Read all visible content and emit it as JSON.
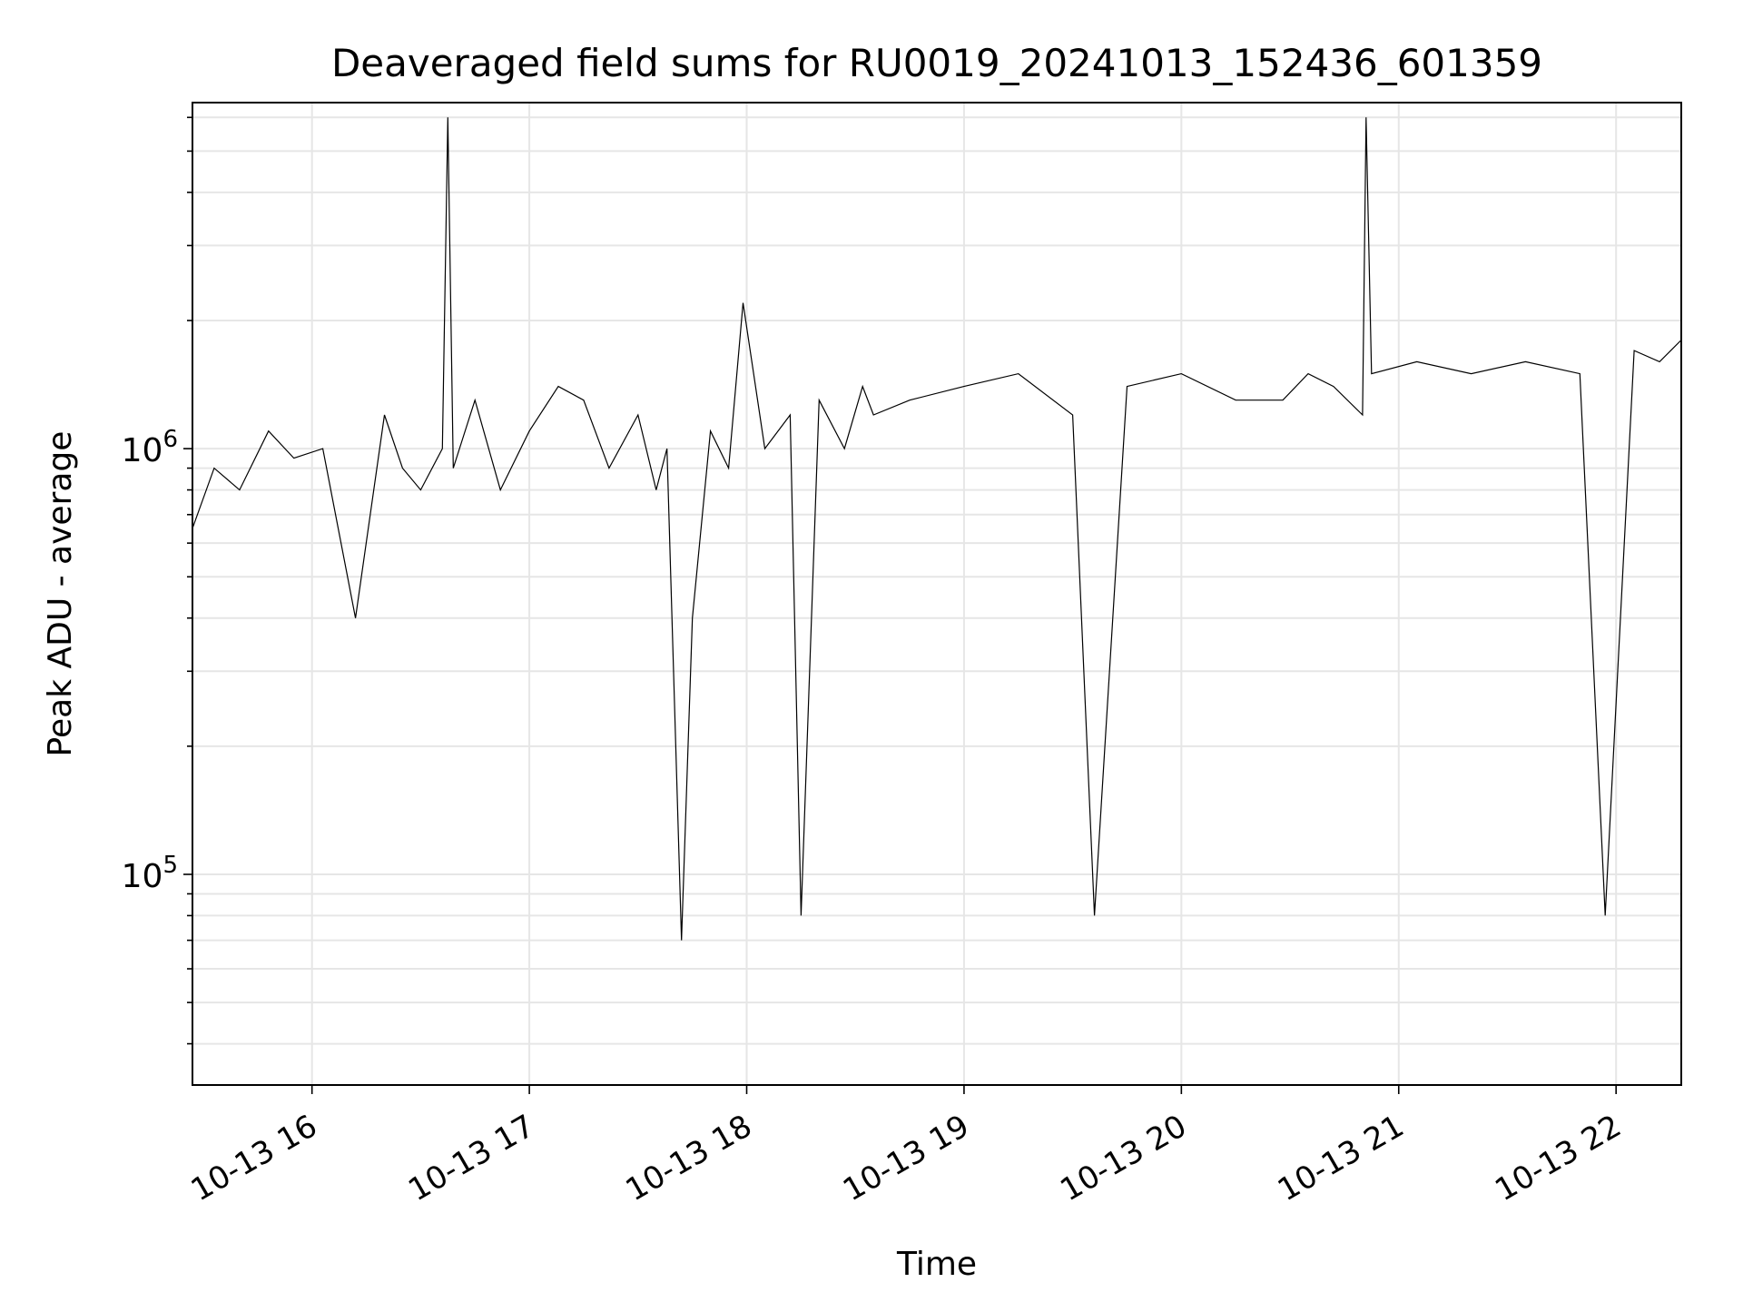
{
  "chart_data": {
    "type": "line",
    "title": "Deaveraged field sums for RU0019_20241013_152436_601359",
    "xlabel": "Time",
    "ylabel": "Peak ADU - average",
    "x_scale": "time",
    "y_scale": "log",
    "xlim": [
      "2024-10-13T15:27:00",
      "2024-10-13T22:18:00"
    ],
    "ylim": [
      32000,
      6500000
    ],
    "x_ticks": [
      {
        "value": "2024-10-13T16:00:00",
        "label": "10-13 16"
      },
      {
        "value": "2024-10-13T17:00:00",
        "label": "10-13 17"
      },
      {
        "value": "2024-10-13T18:00:00",
        "label": "10-13 18"
      },
      {
        "value": "2024-10-13T19:00:00",
        "label": "10-13 19"
      },
      {
        "value": "2024-10-13T20:00:00",
        "label": "10-13 20"
      },
      {
        "value": "2024-10-13T21:00:00",
        "label": "10-13 21"
      },
      {
        "value": "2024-10-13T22:00:00",
        "label": "10-13 22"
      }
    ],
    "y_ticks": [
      {
        "value": 100000,
        "base": "10",
        "exp": "5"
      },
      {
        "value": 1000000,
        "base": "10",
        "exp": "6"
      }
    ],
    "grid": true,
    "line_color": "#000000",
    "grid_color": "#e6e6e6",
    "series": [
      {
        "x": [
          "2024-10-13T15:27:00",
          "2024-10-13T15:33:00",
          "2024-10-13T15:40:00",
          "2024-10-13T15:48:00",
          "2024-10-13T15:55:00",
          "2024-10-13T16:03:00",
          "2024-10-13T16:12:00",
          "2024-10-13T16:20:00",
          "2024-10-13T16:25:00",
          "2024-10-13T16:30:00",
          "2024-10-13T16:36:00",
          "2024-10-13T16:37:30",
          "2024-10-13T16:39:00",
          "2024-10-13T16:45:00",
          "2024-10-13T16:52:00",
          "2024-10-13T17:00:00",
          "2024-10-13T17:08:00",
          "2024-10-13T17:15:00",
          "2024-10-13T17:22:00",
          "2024-10-13T17:30:00",
          "2024-10-13T17:35:00",
          "2024-10-13T17:38:00",
          "2024-10-13T17:42:00",
          "2024-10-13T17:45:00",
          "2024-10-13T17:50:00",
          "2024-10-13T17:55:00",
          "2024-10-13T17:59:00",
          "2024-10-13T18:05:00",
          "2024-10-13T18:12:00",
          "2024-10-13T18:15:00",
          "2024-10-13T18:20:00",
          "2024-10-13T18:27:00",
          "2024-10-13T18:32:00",
          "2024-10-13T18:35:00",
          "2024-10-13T18:45:00",
          "2024-10-13T19:00:00",
          "2024-10-13T19:15:00",
          "2024-10-13T19:30:00",
          "2024-10-13T19:36:00",
          "2024-10-13T19:45:00",
          "2024-10-13T20:00:00",
          "2024-10-13T20:15:00",
          "2024-10-13T20:28:00",
          "2024-10-13T20:35:00",
          "2024-10-13T20:42:00",
          "2024-10-13T20:50:00",
          "2024-10-13T20:51:00",
          "2024-10-13T20:52:30",
          "2024-10-13T21:05:00",
          "2024-10-13T21:20:00",
          "2024-10-13T21:35:00",
          "2024-10-13T21:50:00",
          "2024-10-13T21:57:00",
          "2024-10-13T22:05:00",
          "2024-10-13T22:12:00",
          "2024-10-13T22:18:00"
        ],
        "y": [
          650000,
          900000,
          800000,
          1100000,
          950000,
          1000000,
          400000,
          1200000,
          900000,
          800000,
          1000000,
          6000000,
          900000,
          1300000,
          800000,
          1100000,
          1400000,
          1300000,
          900000,
          1200000,
          800000,
          1000000,
          70000,
          400000,
          1100000,
          900000,
          2200000,
          1000000,
          1200000,
          80000,
          1300000,
          1000000,
          1400000,
          1200000,
          1300000,
          1400000,
          1500000,
          1200000,
          80000,
          1400000,
          1500000,
          1300000,
          1300000,
          1500000,
          1400000,
          1200000,
          6000000,
          1500000,
          1600000,
          1500000,
          1600000,
          1500000,
          80000,
          1700000,
          1600000,
          1800000
        ]
      }
    ]
  }
}
